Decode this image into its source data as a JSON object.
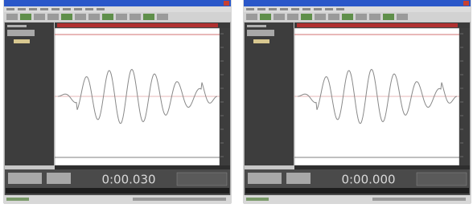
{
  "windows": [
    {
      "time": "0:00.030"
    },
    {
      "time": "0:00.000"
    }
  ]
}
